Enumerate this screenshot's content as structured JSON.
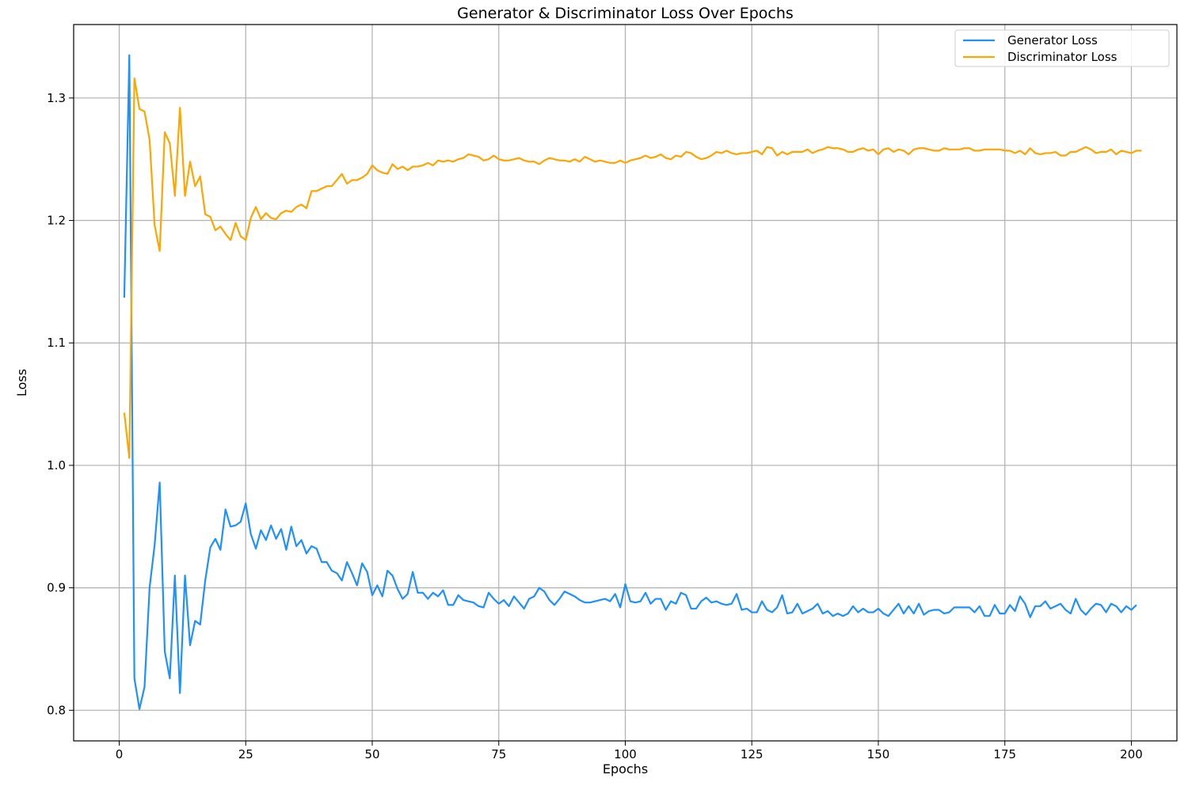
{
  "chart_data": {
    "type": "line",
    "title": "Generator & Discriminator Loss Over Epochs",
    "xlabel": "Epochs",
    "ylabel": "Loss",
    "xlim": [
      -9,
      209
    ],
    "ylim": [
      0.775,
      1.36
    ],
    "xticks": [
      0,
      25,
      50,
      75,
      100,
      125,
      150,
      175,
      200
    ],
    "xtick_labels": [
      "0",
      "25",
      "50",
      "75",
      "100",
      "125",
      "150",
      "175",
      "200"
    ],
    "yticks": [
      0.8,
      0.9,
      1.0,
      1.1,
      1.2,
      1.3
    ],
    "ytick_labels": [
      "0.8",
      "0.9",
      "1.0",
      "1.1",
      "1.2",
      "1.3"
    ],
    "grid": true,
    "legend": "top-right",
    "series": [
      {
        "name": "Generator Loss",
        "color": "#1e90ff",
        "x_start": 1,
        "x_step": 1,
        "values": [
          1.137,
          1.335,
          0.826,
          0.801,
          0.819,
          0.9,
          0.935,
          0.986,
          0.848,
          0.826,
          0.91,
          0.814,
          0.91,
          0.853,
          0.873,
          0.87,
          0.906,
          0.933,
          0.94,
          0.931,
          0.964,
          0.95,
          0.951,
          0.954,
          0.969,
          0.944,
          0.932,
          0.947,
          0.939,
          0.951,
          0.94,
          0.948,
          0.931,
          0.95,
          0.934,
          0.939,
          0.928,
          0.934,
          0.932,
          0.921,
          0.921,
          0.914,
          0.912,
          0.906,
          0.921,
          0.912,
          0.902,
          0.92,
          0.913,
          0.894,
          0.902,
          0.893,
          0.914,
          0.91,
          0.899,
          0.891,
          0.895,
          0.913,
          0.896,
          0.896,
          0.891,
          0.896,
          0.893,
          0.898,
          0.886,
          0.886,
          0.894,
          0.89,
          0.889,
          0.888,
          0.885,
          0.884,
          0.896,
          0.891,
          0.887,
          0.89,
          0.885,
          0.893,
          0.888,
          0.883,
          0.891,
          0.893,
          0.9,
          0.897,
          0.89,
          0.886,
          0.891,
          0.897,
          0.895,
          0.893,
          0.89,
          0.888,
          0.888,
          0.889,
          0.89,
          0.891,
          0.889,
          0.895,
          0.884,
          0.903,
          0.889,
          0.888,
          0.889,
          0.896,
          0.887,
          0.891,
          0.891,
          0.882,
          0.889,
          0.887,
          0.896,
          0.894,
          0.883,
          0.883,
          0.889,
          0.892,
          0.888,
          0.889,
          0.887,
          0.886,
          0.887,
          0.895,
          0.882,
          0.883,
          0.88,
          0.88,
          0.889,
          0.882,
          0.88,
          0.884,
          0.894,
          0.879,
          0.88,
          0.887,
          0.879,
          0.881,
          0.883,
          0.887,
          0.879,
          0.881,
          0.877,
          0.879,
          0.877,
          0.879,
          0.885,
          0.88,
          0.883,
          0.88,
          0.88,
          0.883,
          0.879,
          0.877,
          0.882,
          0.887,
          0.879,
          0.885,
          0.879,
          0.887,
          0.878,
          0.881,
          0.882,
          0.882,
          0.879,
          0.88,
          0.884,
          0.884,
          0.884,
          0.884,
          0.88,
          0.885,
          0.877,
          0.877,
          0.886,
          0.879,
          0.879,
          0.886,
          0.881,
          0.893,
          0.887,
          0.876,
          0.885,
          0.885,
          0.889,
          0.883,
          0.885,
          0.887,
          0.882,
          0.879,
          0.891,
          0.882,
          0.878,
          0.883,
          0.887,
          0.886,
          0.88,
          0.887,
          0.885,
          0.88,
          0.885,
          0.882,
          0.886
        ]
      },
      {
        "name": "Discriminator Loss",
        "color": "#ffa500",
        "x_start": 1,
        "x_step": 1,
        "values": [
          1.043,
          1.006,
          1.316,
          1.291,
          1.289,
          1.266,
          1.196,
          1.175,
          1.272,
          1.263,
          1.22,
          1.292,
          1.22,
          1.248,
          1.228,
          1.236,
          1.205,
          1.203,
          1.192,
          1.195,
          1.189,
          1.184,
          1.198,
          1.187,
          1.184,
          1.202,
          1.211,
          1.201,
          1.206,
          1.202,
          1.201,
          1.206,
          1.208,
          1.207,
          1.211,
          1.213,
          1.21,
          1.224,
          1.224,
          1.226,
          1.228,
          1.228,
          1.233,
          1.238,
          1.23,
          1.233,
          1.233,
          1.235,
          1.238,
          1.245,
          1.241,
          1.239,
          1.238,
          1.246,
          1.242,
          1.244,
          1.241,
          1.244,
          1.244,
          1.245,
          1.247,
          1.245,
          1.249,
          1.248,
          1.249,
          1.248,
          1.25,
          1.251,
          1.254,
          1.253,
          1.252,
          1.249,
          1.25,
          1.253,
          1.25,
          1.249,
          1.249,
          1.25,
          1.251,
          1.249,
          1.248,
          1.248,
          1.246,
          1.249,
          1.251,
          1.25,
          1.249,
          1.249,
          1.248,
          1.25,
          1.248,
          1.252,
          1.25,
          1.248,
          1.249,
          1.248,
          1.247,
          1.247,
          1.249,
          1.247,
          1.249,
          1.25,
          1.251,
          1.253,
          1.251,
          1.252,
          1.254,
          1.251,
          1.25,
          1.253,
          1.252,
          1.256,
          1.255,
          1.252,
          1.25,
          1.251,
          1.253,
          1.256,
          1.255,
          1.257,
          1.255,
          1.254,
          1.255,
          1.255,
          1.256,
          1.257,
          1.254,
          1.26,
          1.259,
          1.253,
          1.256,
          1.254,
          1.256,
          1.256,
          1.256,
          1.258,
          1.255,
          1.257,
          1.258,
          1.26,
          1.259,
          1.259,
          1.258,
          1.256,
          1.256,
          1.258,
          1.259,
          1.257,
          1.258,
          1.254,
          1.258,
          1.259,
          1.256,
          1.258,
          1.257,
          1.254,
          1.258,
          1.259,
          1.259,
          1.258,
          1.257,
          1.257,
          1.259,
          1.258,
          1.258,
          1.258,
          1.259,
          1.259,
          1.257,
          1.257,
          1.258,
          1.258,
          1.258,
          1.258,
          1.257,
          1.257,
          1.255,
          1.257,
          1.254,
          1.259,
          1.255,
          1.254,
          1.255,
          1.255,
          1.256,
          1.253,
          1.253,
          1.256,
          1.256,
          1.258,
          1.26,
          1.258,
          1.255,
          1.256,
          1.256,
          1.258,
          1.254,
          1.257,
          1.256,
          1.255,
          1.257,
          1.257
        ]
      }
    ]
  }
}
